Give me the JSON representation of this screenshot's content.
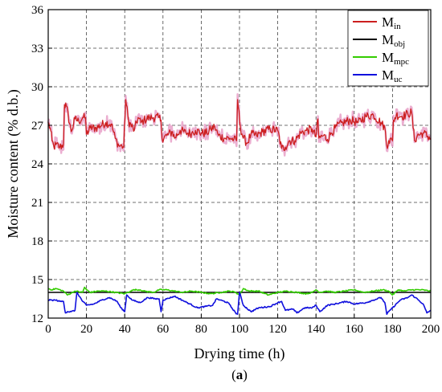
{
  "chart_data": {
    "type": "line",
    "xlabel": "Drying time (h)",
    "ylabel": "Moisture content (% d.b.)",
    "panel_label": "(a)",
    "xlim": [
      0,
      200
    ],
    "ylim": [
      12,
      36
    ],
    "xticks": [
      0,
      20,
      40,
      60,
      80,
      100,
      120,
      140,
      160,
      180,
      200
    ],
    "yticks": [
      12,
      15,
      18,
      21,
      24,
      27,
      30,
      33,
      36
    ],
    "grid": true,
    "legend_position": "top-right",
    "series": [
      {
        "name": "M",
        "sub": "in",
        "color": "#cc1f1f",
        "shade": "#e8a0c8",
        "noise": 0.35,
        "x": [
          0,
          1,
          2,
          3,
          4,
          6,
          8,
          8.5,
          9.5,
          12,
          14,
          16,
          18,
          19.5,
          20,
          22,
          25,
          30,
          33,
          35,
          37,
          38.5,
          39.5,
          40.5,
          42,
          45,
          47,
          48.5,
          50,
          53,
          55,
          58,
          59,
          59.5,
          62,
          65,
          66,
          69,
          72,
          75,
          77,
          80,
          83,
          85,
          87,
          89,
          92,
          95,
          97,
          98.5,
          99,
          100.5,
          102,
          104,
          106,
          109,
          112,
          116,
          120,
          122,
          124,
          126,
          129,
          132,
          135,
          138,
          140,
          141,
          141.5,
          144,
          146,
          148,
          150,
          154,
          158,
          162,
          166,
          170,
          174,
          176,
          177,
          178,
          180,
          180.5,
          182,
          185,
          188,
          190,
          191.5,
          193,
          196,
          200
        ],
        "y": [
          27.2,
          26.8,
          25.8,
          25.3,
          25.5,
          25.3,
          25.5,
          28.6,
          28.5,
          26.5,
          27.5,
          27.3,
          27.6,
          27.6,
          26.3,
          26.8,
          26.8,
          27.2,
          27.1,
          26.0,
          25.4,
          25.4,
          25.3,
          29.0,
          27.3,
          26.6,
          27.6,
          27.2,
          27.4,
          27.6,
          27.6,
          27.6,
          27.4,
          26.0,
          26.2,
          26.5,
          26.0,
          26.6,
          26.4,
          26.4,
          26.6,
          26.4,
          26.4,
          26.7,
          26.9,
          26.2,
          26.0,
          26.0,
          25.9,
          25.8,
          29.0,
          26.8,
          26.0,
          25.6,
          26.3,
          26.2,
          26.5,
          26.7,
          26.6,
          25.2,
          25.3,
          25.8,
          25.8,
          26.4,
          26.6,
          26.7,
          26.1,
          27.5,
          26.0,
          26.2,
          25.9,
          26.4,
          26.8,
          27.2,
          27.4,
          27.2,
          27.7,
          27.8,
          27.2,
          26.8,
          25.4,
          25.8,
          25.8,
          27.4,
          27.8,
          27.7,
          27.9,
          28.0,
          25.8,
          26.2,
          26.4,
          26.0
        ]
      },
      {
        "name": "M",
        "sub": "obj",
        "color": "#000000",
        "noise": 0,
        "x": [
          0,
          200
        ],
        "y": [
          14.0,
          14.0
        ]
      },
      {
        "name": "M",
        "sub": "mpc",
        "color": "#33cc00",
        "noise": 0.05,
        "x": [
          0,
          2,
          4,
          8,
          10,
          14,
          18,
          19,
          20,
          22,
          26,
          30,
          35,
          40,
          43,
          45,
          48,
          50,
          55,
          58,
          62,
          66,
          70,
          75,
          80,
          85,
          90,
          95,
          98,
          100,
          102,
          105,
          110,
          115,
          120,
          125,
          130,
          135,
          138,
          140,
          142,
          145,
          150,
          155,
          160,
          165,
          170,
          175,
          178,
          180,
          183,
          186,
          190,
          195,
          200
        ],
        "y": [
          14.3,
          14.2,
          14.3,
          14.1,
          13.8,
          14.1,
          14.0,
          14.4,
          14.2,
          14.0,
          14.1,
          14.1,
          14.0,
          13.9,
          14.1,
          14.2,
          14.2,
          14.1,
          14.0,
          14.2,
          14.2,
          14.1,
          14.0,
          14.1,
          14.0,
          13.9,
          14.0,
          14.1,
          14.0,
          13.8,
          14.3,
          14.1,
          14.1,
          13.8,
          14.0,
          14.1,
          14.0,
          13.9,
          14.0,
          14.2,
          14.0,
          14.1,
          14.0,
          14.1,
          14.2,
          14.0,
          14.1,
          14.2,
          14.1,
          13.8,
          14.2,
          14.1,
          14.2,
          14.2,
          14.1
        ]
      },
      {
        "name": "M",
        "sub": "uc",
        "color": "#1010dd",
        "noise": 0.05,
        "x": [
          0,
          2,
          4,
          6,
          8,
          9,
          10,
          12,
          14,
          15,
          18,
          20,
          24,
          28,
          32,
          36,
          38,
          40,
          41,
          44,
          48,
          52,
          56,
          58,
          59,
          60,
          62,
          66,
          70,
          74,
          78,
          82,
          86,
          88,
          90,
          94,
          98,
          99,
          100,
          102,
          106,
          110,
          116,
          120,
          122,
          124,
          128,
          130,
          134,
          138,
          140,
          142,
          146,
          150,
          156,
          160,
          166,
          170,
          174,
          176,
          177,
          178,
          180,
          184,
          188,
          190,
          192,
          196,
          198,
          200
        ],
        "y": [
          13.4,
          13.4,
          13.4,
          13.3,
          13.3,
          12.4,
          12.5,
          12.5,
          12.6,
          14.0,
          13.3,
          13.0,
          13.1,
          13.4,
          13.6,
          13.3,
          12.8,
          12.5,
          13.8,
          13.4,
          13.2,
          13.6,
          13.5,
          13.5,
          12.5,
          13.4,
          13.5,
          13.7,
          13.4,
          13.1,
          12.8,
          12.9,
          13.0,
          13.5,
          13.4,
          13.2,
          12.4,
          12.3,
          14.0,
          13.0,
          12.5,
          12.8,
          12.9,
          13.2,
          13.3,
          12.6,
          12.7,
          12.4,
          12.8,
          12.8,
          13.0,
          12.5,
          13.0,
          13.1,
          13.3,
          13.1,
          13.2,
          13.4,
          13.6,
          13.2,
          12.3,
          12.5,
          12.8,
          13.4,
          13.6,
          13.8,
          13.6,
          13.1,
          12.4,
          12.6
        ]
      }
    ]
  }
}
